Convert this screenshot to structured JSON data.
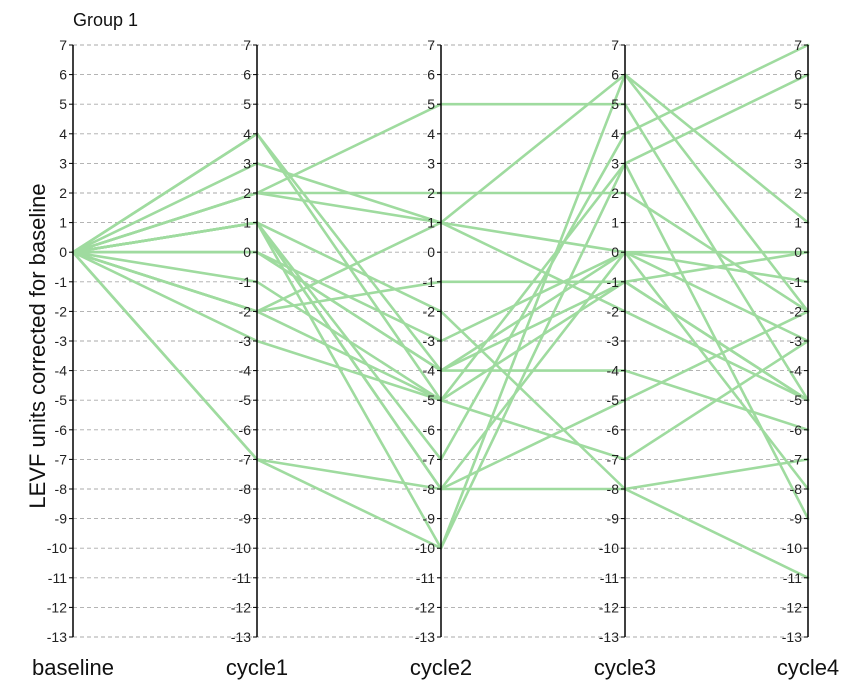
{
  "chart_data": {
    "type": "line",
    "title": "Group 1",
    "ylabel": "LEVF units corrected for baseline",
    "xlabel": "",
    "categories": [
      "baseline",
      "cycle1",
      "cycle2",
      "cycle3",
      "cycle4"
    ],
    "ylim": [
      -13,
      7
    ],
    "yticks": [
      7,
      6,
      5,
      4,
      3,
      2,
      1,
      0,
      -1,
      -2,
      -3,
      -4,
      -5,
      -6,
      -7,
      -8,
      -9,
      -10,
      -11,
      -12,
      -13
    ],
    "grid": true,
    "grid_style": "dashed",
    "line_color": "#9fdb9f",
    "series": [
      {
        "values": [
          0,
          4,
          -5,
          null,
          null
        ]
      },
      {
        "values": [
          0,
          3,
          1,
          0,
          -1
        ]
      },
      {
        "values": [
          0,
          2,
          5,
          5,
          -5
        ]
      },
      {
        "values": [
          0,
          2,
          2,
          2,
          -2
        ]
      },
      {
        "values": [
          0,
          1,
          -10,
          3,
          6
        ]
      },
      {
        "values": [
          0,
          1,
          -2,
          -8,
          -11
        ]
      },
      {
        "values": [
          0,
          0,
          -4,
          -4,
          -6
        ]
      },
      {
        "values": [
          0,
          -1,
          -5,
          -7,
          -3
        ]
      },
      {
        "values": [
          0,
          -2,
          1,
          6,
          -2
        ]
      },
      {
        "values": [
          0,
          -2,
          -5,
          -1,
          0
        ]
      },
      {
        "values": [
          0,
          -3,
          -5,
          3,
          -9
        ]
      },
      {
        "values": [
          0,
          -7,
          -8,
          -8,
          -7
        ]
      },
      {
        "values": [
          0,
          -7,
          -10,
          6,
          1
        ]
      },
      {
        "values": [
          0,
          0,
          -3,
          0,
          0
        ]
      },
      {
        "values": [
          0,
          1,
          -7,
          4,
          7
        ]
      },
      {
        "values": [
          0,
          1,
          -8,
          -5,
          -2
        ]
      },
      {
        "values": [
          0,
          -2,
          -1,
          -1,
          -5
        ]
      },
      {
        "values": [
          0,
          1,
          -8,
          0,
          -3
        ]
      },
      {
        "values": [
          0,
          0,
          -4,
          0,
          -8
        ]
      },
      {
        "values": [
          0,
          4,
          -4,
          -1,
          -5
        ]
      },
      {
        "values": [
          0,
          2,
          1,
          -2,
          -5
        ]
      }
    ]
  }
}
